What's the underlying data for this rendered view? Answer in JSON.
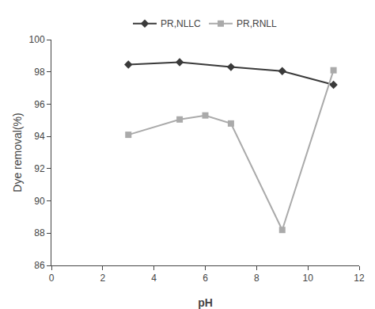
{
  "chart_data": {
    "type": "line",
    "xlabel": "pH",
    "ylabel": "Dye removal(%)",
    "series": [
      {
        "name": "PR,NLLC",
        "color": "#3a3a3a",
        "marker": "diamond",
        "line_style": "solid",
        "x": [
          3,
          5,
          7,
          9,
          11
        ],
        "values": [
          98.45,
          98.6,
          98.3,
          98.05,
          97.2
        ]
      },
      {
        "name": "PR,RNLL",
        "color": "#aaaaaa",
        "marker": "square",
        "line_style": "solid",
        "x": [
          3,
          5,
          6,
          7,
          9,
          11
        ],
        "values": [
          94.1,
          95.05,
          95.3,
          94.8,
          88.2,
          98.1
        ]
      }
    ],
    "xlim": [
      0,
      12
    ],
    "ylim": [
      86,
      100
    ],
    "xticks": [
      0,
      2,
      4,
      6,
      8,
      10,
      12
    ],
    "yticks": [
      86,
      88,
      90,
      92,
      94,
      96,
      98,
      100
    ],
    "grid": false,
    "legend": "top"
  }
}
